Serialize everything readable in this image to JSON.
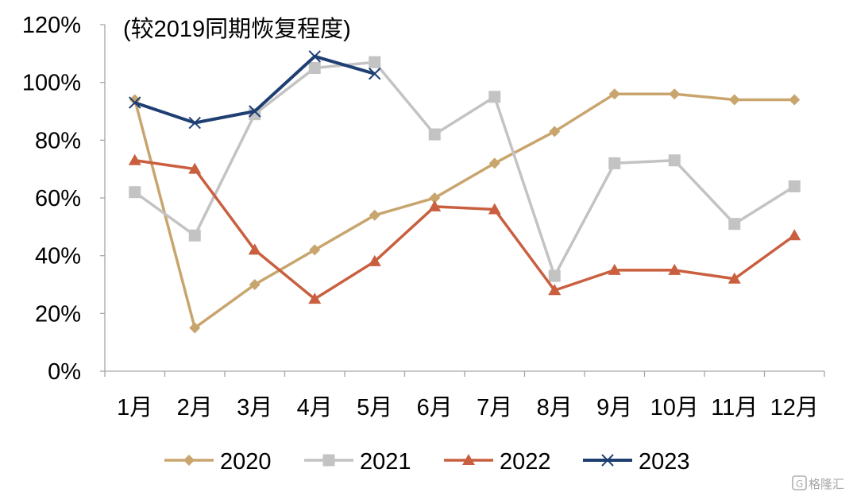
{
  "chart_data": {
    "type": "line",
    "title": "(较2019同期恢复程度)",
    "xlabel": "",
    "ylabel": "",
    "categories": [
      "1月",
      "2月",
      "3月",
      "4月",
      "5月",
      "6月",
      "7月",
      "8月",
      "9月",
      "10月",
      "11月",
      "12月"
    ],
    "ylim": [
      0,
      120
    ],
    "yticks": [
      0,
      20,
      40,
      60,
      80,
      100,
      120
    ],
    "ytick_labels": [
      "0%",
      "20%",
      "40%",
      "60%",
      "80%",
      "100%",
      "120%"
    ],
    "grid": false,
    "legend_position": "bottom",
    "series": [
      {
        "name": "2020",
        "color": "#c9a56e",
        "marker": "diamond",
        "values": [
          94,
          15,
          30,
          42,
          54,
          60,
          72,
          83,
          96,
          96,
          94,
          94
        ]
      },
      {
        "name": "2021",
        "color": "#c3c3c3",
        "marker": "square",
        "values": [
          62,
          47,
          89,
          105,
          107,
          82,
          95,
          33,
          72,
          73,
          51,
          64
        ]
      },
      {
        "name": "2022",
        "color": "#c95f3f",
        "marker": "triangle",
        "values": [
          73,
          70,
          42,
          25,
          38,
          57,
          56,
          28,
          35,
          35,
          32,
          47
        ]
      },
      {
        "name": "2023",
        "color": "#1f3f73",
        "marker": "x",
        "values": [
          93,
          86,
          90,
          109,
          103,
          null,
          null,
          null,
          null,
          null,
          null,
          null
        ]
      }
    ]
  },
  "watermark": {
    "text": "格隆汇",
    "icon": "g-logo-icon"
  }
}
